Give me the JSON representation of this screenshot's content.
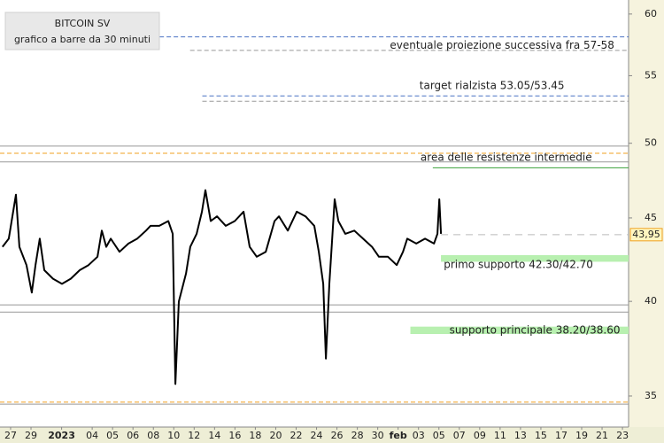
{
  "chart_data": {
    "type": "line",
    "title": "BITCOIN SV",
    "subtitle": "grafico a  barre da 30 minuti",
    "log_scale": true,
    "ylim": [
      33.5,
      61.2
    ],
    "yticks": [
      35,
      40,
      45,
      50,
      55,
      60
    ],
    "xlim": [
      -0.52,
      30.3
    ],
    "xticks": [
      {
        "value": 0,
        "label": "27"
      },
      {
        "value": 1,
        "label": "29"
      },
      {
        "value": 2.5,
        "label": "2023"
      },
      {
        "value": 4,
        "label": "04"
      },
      {
        "value": 5,
        "label": "05"
      },
      {
        "value": 6,
        "label": "06"
      },
      {
        "value": 7,
        "label": "08"
      },
      {
        "value": 8,
        "label": "10"
      },
      {
        "value": 9,
        "label": "12"
      },
      {
        "value": 10,
        "label": "14"
      },
      {
        "value": 11,
        "label": "16"
      },
      {
        "value": 12,
        "label": "18"
      },
      {
        "value": 13,
        "label": "20"
      },
      {
        "value": 14,
        "label": "22"
      },
      {
        "value": 15,
        "label": "24"
      },
      {
        "value": 16,
        "label": "26"
      },
      {
        "value": 17,
        "label": "28"
      },
      {
        "value": 18,
        "label": "30"
      },
      {
        "value": 19,
        "label": "feb"
      },
      {
        "value": 20,
        "label": "03"
      },
      {
        "value": 21,
        "label": "05"
      },
      {
        "value": 22,
        "label": "07"
      },
      {
        "value": 23,
        "label": "09"
      },
      {
        "value": 24,
        "label": "11"
      },
      {
        "value": 25,
        "label": "13"
      },
      {
        "value": 26,
        "label": "15"
      },
      {
        "value": 27,
        "label": "17"
      },
      {
        "value": 28,
        "label": "19"
      },
      {
        "value": 29,
        "label": "21"
      },
      {
        "value": 30,
        "label": "23"
      }
    ],
    "series": [
      {
        "name": "BITCOIN SV",
        "color": "#000000",
        "x": [
          -0.4,
          -0.09,
          0.26,
          0.43,
          0.78,
          1.04,
          1.22,
          1.43,
          1.65,
          2.08,
          2.52,
          2.95,
          3.39,
          3.82,
          4.26,
          4.47,
          4.69,
          4.91,
          5.34,
          5.78,
          6.21,
          6.64,
          6.86,
          7.29,
          7.73,
          7.95,
          8.08,
          8.25,
          8.6,
          8.81,
          9.12,
          9.38,
          9.55,
          9.81,
          10.12,
          10.55,
          10.99,
          11.42,
          11.72,
          12.07,
          12.51,
          12.94,
          13.16,
          13.59,
          14.03,
          14.46,
          14.89,
          15.11,
          15.33,
          15.46,
          15.63,
          15.89,
          16.07,
          16.41,
          16.85,
          17.28,
          17.72,
          18.06,
          18.5,
          18.93,
          19.24,
          19.45,
          19.89,
          20.32,
          20.76,
          20.93,
          21.02,
          21.1
        ],
        "values": [
          43.2,
          43.7,
          46.5,
          43.2,
          42.1,
          40.5,
          42.1,
          43.7,
          41.8,
          41.3,
          41.0,
          41.3,
          41.8,
          42.1,
          42.6,
          44.2,
          43.2,
          43.7,
          42.9,
          43.4,
          43.7,
          44.2,
          44.5,
          44.5,
          44.8,
          44.0,
          35.6,
          40.0,
          41.6,
          43.2,
          44.0,
          45.4,
          46.8,
          44.8,
          45.1,
          44.5,
          44.8,
          45.4,
          43.2,
          42.6,
          42.9,
          44.8,
          45.1,
          44.2,
          45.4,
          45.1,
          44.5,
          42.9,
          41.0,
          36.9,
          41.0,
          46.2,
          44.8,
          44.0,
          44.2,
          43.7,
          43.2,
          42.6,
          42.6,
          42.1,
          42.9,
          43.7,
          43.4,
          43.7,
          43.4,
          44.0,
          46.2,
          44.0
        ]
      }
    ],
    "last_price": {
      "value": 43.95,
      "value_label": "43,95",
      "color": "#f0a020"
    },
    "levels": [
      {
        "value": 58.1,
        "color": "#4a72c4",
        "style": "dashed",
        "from": 7.3
      },
      {
        "value": 57.0,
        "color": "#999999",
        "style": "dashed",
        "from": 8.8
      },
      {
        "value": 53.45,
        "color": "#4a72c4",
        "style": "dashed",
        "from": 9.4
      },
      {
        "value": 53.05,
        "color": "#999999",
        "style": "dashed",
        "from": 9.4
      },
      {
        "value": 49.8,
        "color": "#999999",
        "style": "solid"
      },
      {
        "value": 49.3,
        "color": "#f0a020",
        "style": "dashed"
      },
      {
        "value": 48.7,
        "color": "#999999",
        "style": "solid"
      },
      {
        "value": 48.3,
        "color": "#3aa03a",
        "style": "solid",
        "from": 20.7
      },
      {
        "value": 39.8,
        "color": "#999999",
        "style": "solid"
      },
      {
        "value": 39.4,
        "color": "#999999",
        "style": "solid"
      },
      {
        "value": 34.7,
        "color": "#f0a020",
        "style": "dashed"
      },
      {
        "value": 34.6,
        "color": "#999999",
        "style": "solid"
      }
    ],
    "bands": [
      {
        "low": 42.3,
        "high": 42.7,
        "color": "#b8f0b0",
        "from": 21.1
      },
      {
        "low": 38.2,
        "high": 38.6,
        "color": "#b8f0b0",
        "from": 19.6
      }
    ],
    "annotations": [
      {
        "text": "eventuale proiezione successiva fra 57-58",
        "x": 24.1,
        "y": 57.4
      },
      {
        "text": "target rialzista 53.05/53.45",
        "x": 23.6,
        "y": 54.2
      },
      {
        "text": "area delle resistenze intermedie",
        "x": 24.3,
        "y": 49.0
      },
      {
        "text": "primo supporto 42.30/42.70",
        "x": 24.9,
        "y": 42.1
      },
      {
        "text": "supporto principale 38.20/38.60",
        "x": 25.7,
        "y": 38.4
      }
    ]
  }
}
